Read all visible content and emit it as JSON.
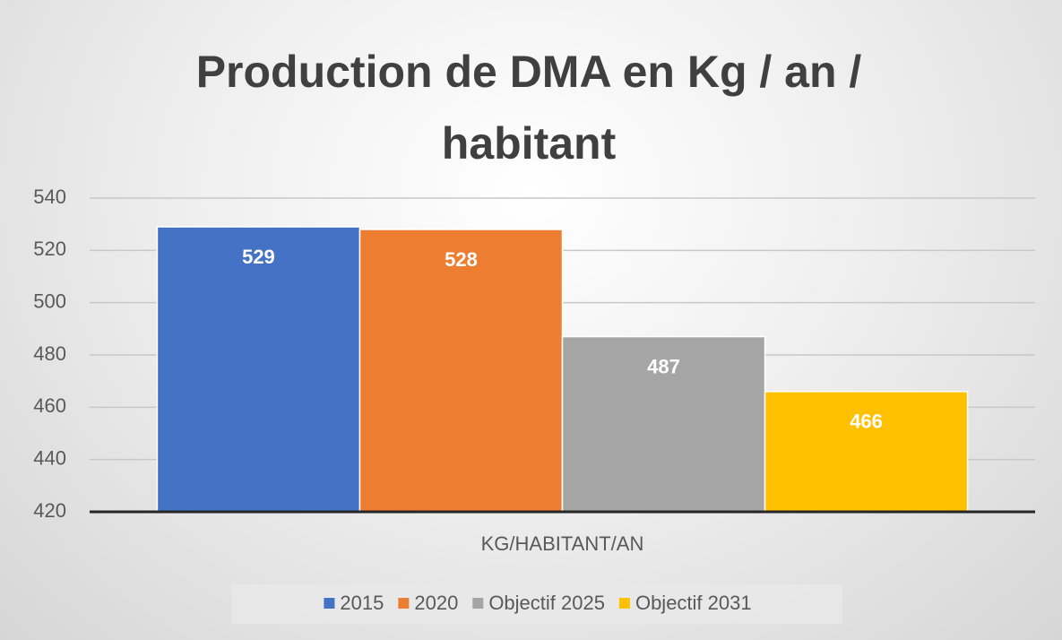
{
  "chart_data": {
    "type": "bar",
    "title": "Production de DMA en Kg / an / habitant",
    "categories": [
      "KG/HABITANT/AN"
    ],
    "series": [
      {
        "name": "2015",
        "color": "#4472c4",
        "values": [
          529
        ]
      },
      {
        "name": "2020",
        "color": "#ed7d31",
        "values": [
          528
        ]
      },
      {
        "name": "Objectif 2025",
        "color": "#a5a5a5",
        "values": [
          487
        ]
      },
      {
        "name": "Objectif 2031",
        "color": "#ffc000",
        "values": [
          466
        ]
      }
    ],
    "ylim": [
      420,
      540
    ],
    "yticks": [
      420,
      440,
      460,
      480,
      500,
      520,
      540
    ],
    "grid": true,
    "legend": "bottom"
  }
}
